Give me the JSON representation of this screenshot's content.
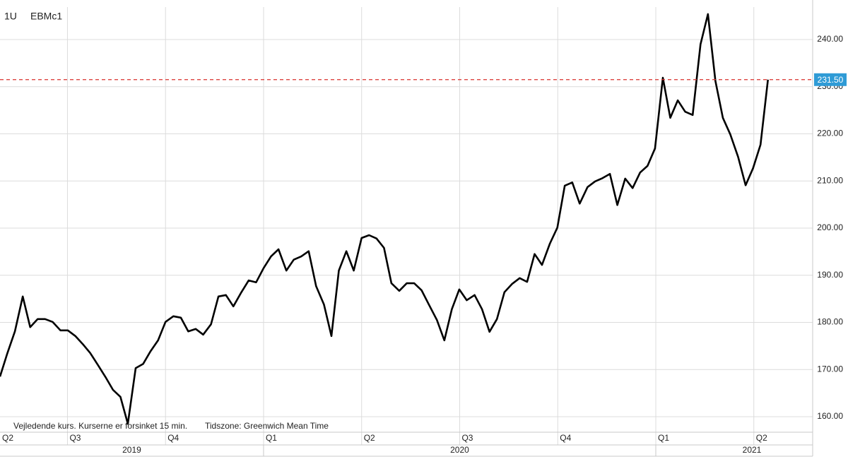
{
  "chart_data": {
    "type": "line",
    "period": "1U",
    "footer": [
      "Vejledende kurs. Kurserne er forsinket 15 min.",
      "Tidszone: Greenwich Mean Time"
    ],
    "x": [
      2019.328,
      2019.347,
      2019.366,
      2019.386,
      2019.405,
      2019.424,
      2019.443,
      2019.462,
      2019.482,
      2019.501,
      2019.52,
      2019.539,
      2019.558,
      2019.578,
      2019.597,
      2019.616,
      2019.635,
      2019.654,
      2019.674,
      2019.693,
      2019.712,
      2019.731,
      2019.75,
      2019.77,
      2019.789,
      2019.808,
      2019.827,
      2019.846,
      2019.866,
      2019.885,
      2019.904,
      2019.923,
      2019.942,
      2019.962,
      2019.981,
      2020.0,
      2020.019,
      2020.038,
      2020.058,
      2020.077,
      2020.096,
      2020.115,
      2020.134,
      2020.154,
      2020.173,
      2020.192,
      2020.211,
      2020.23,
      2020.25,
      2020.269,
      2020.288,
      2020.307,
      2020.326,
      2020.346,
      2020.365,
      2020.384,
      2020.403,
      2020.422,
      2020.442,
      2020.461,
      2020.48,
      2020.499,
      2020.518,
      2020.538,
      2020.557,
      2020.576,
      2020.595,
      2020.614,
      2020.634,
      2020.653,
      2020.672,
      2020.691,
      2020.71,
      2020.73,
      2020.749,
      2020.768,
      2020.787,
      2020.806,
      2020.826,
      2020.845,
      2020.864,
      2020.883,
      2020.902,
      2020.922,
      2020.941,
      2020.96,
      2020.979,
      2020.998,
      2021.018,
      2021.037,
      2021.056,
      2021.075,
      2021.094,
      2021.114,
      2021.133,
      2021.152,
      2021.171,
      2021.19,
      2021.21,
      2021.229,
      2021.248,
      2021.267,
      2021.286
    ],
    "series": [
      {
        "name": "EBMc1",
        "color": "#000000",
        "values": [
          168.5,
          173.5,
          178.1,
          185.5,
          179.0,
          180.7,
          180.7,
          180.1,
          178.3,
          178.3,
          177.1,
          175.4,
          173.5,
          170.9,
          168.4,
          165.7,
          164.2,
          158.5,
          170.3,
          171.2,
          173.9,
          176.2,
          180.1,
          181.3,
          181.0,
          178.1,
          178.6,
          177.4,
          179.6,
          185.5,
          185.8,
          183.4,
          186.2,
          188.9,
          188.5,
          191.5,
          194.0,
          195.5,
          191.0,
          193.3,
          194.0,
          195.1,
          187.7,
          183.8,
          177.1,
          191.0,
          195.1,
          191.0,
          197.9,
          198.5,
          197.8,
          195.8,
          188.3,
          186.7,
          188.3,
          188.3,
          186.8,
          183.7,
          180.5,
          176.2,
          182.8,
          187.0,
          184.7,
          185.8,
          182.8,
          178.0,
          180.7,
          186.4,
          188.2,
          189.4,
          188.6,
          194.5,
          192.2,
          196.7,
          200.1,
          209.0,
          209.7,
          205.2,
          208.7,
          209.9,
          210.6,
          211.5,
          204.9,
          210.5,
          208.5,
          211.8,
          213.2,
          216.9,
          231.9,
          223.4,
          227.1,
          224.7,
          224.0,
          239.0,
          245.4,
          231.2,
          223.4,
          219.9,
          215.1,
          209.1,
          212.7,
          217.7,
          231.5
        ]
      }
    ],
    "xlim": [
      2019.328,
      2021.4
    ],
    "xticks": [
      {
        "value": 2019.25,
        "label": "Q2"
      },
      {
        "value": 2019.5,
        "label": "Q3"
      },
      {
        "value": 2019.75,
        "label": "Q4"
      },
      {
        "value": 2020.0,
        "label": "Q1"
      },
      {
        "value": 2020.25,
        "label": "Q2"
      },
      {
        "value": 2020.5,
        "label": "Q3"
      },
      {
        "value": 2020.75,
        "label": "Q4"
      },
      {
        "value": 2021.0,
        "label": "Q1"
      },
      {
        "value": 2021.25,
        "label": "Q2"
      }
    ],
    "years": [
      {
        "value": 2019,
        "label": "2019"
      },
      {
        "value": 2020,
        "label": "2020"
      },
      {
        "value": 2021,
        "label": "2021"
      }
    ],
    "ylim": [
      156.7,
      246.9
    ],
    "yticks": [
      {
        "value": 160,
        "label": "160.00"
      },
      {
        "value": 170,
        "label": "170.00"
      },
      {
        "value": 180,
        "label": "180.00"
      },
      {
        "value": 190,
        "label": "190.00"
      },
      {
        "value": 200,
        "label": "200.00"
      },
      {
        "value": 210,
        "label": "210.00"
      },
      {
        "value": 220,
        "label": "220.00"
      },
      {
        "value": 230,
        "label": "230.00"
      },
      {
        "value": 240,
        "label": "240.00"
      }
    ],
    "last_value": {
      "value": 231.5,
      "label": "231.50",
      "line_color": "#d9302c",
      "box_color": "#2f9bd6"
    },
    "grid": true
  }
}
